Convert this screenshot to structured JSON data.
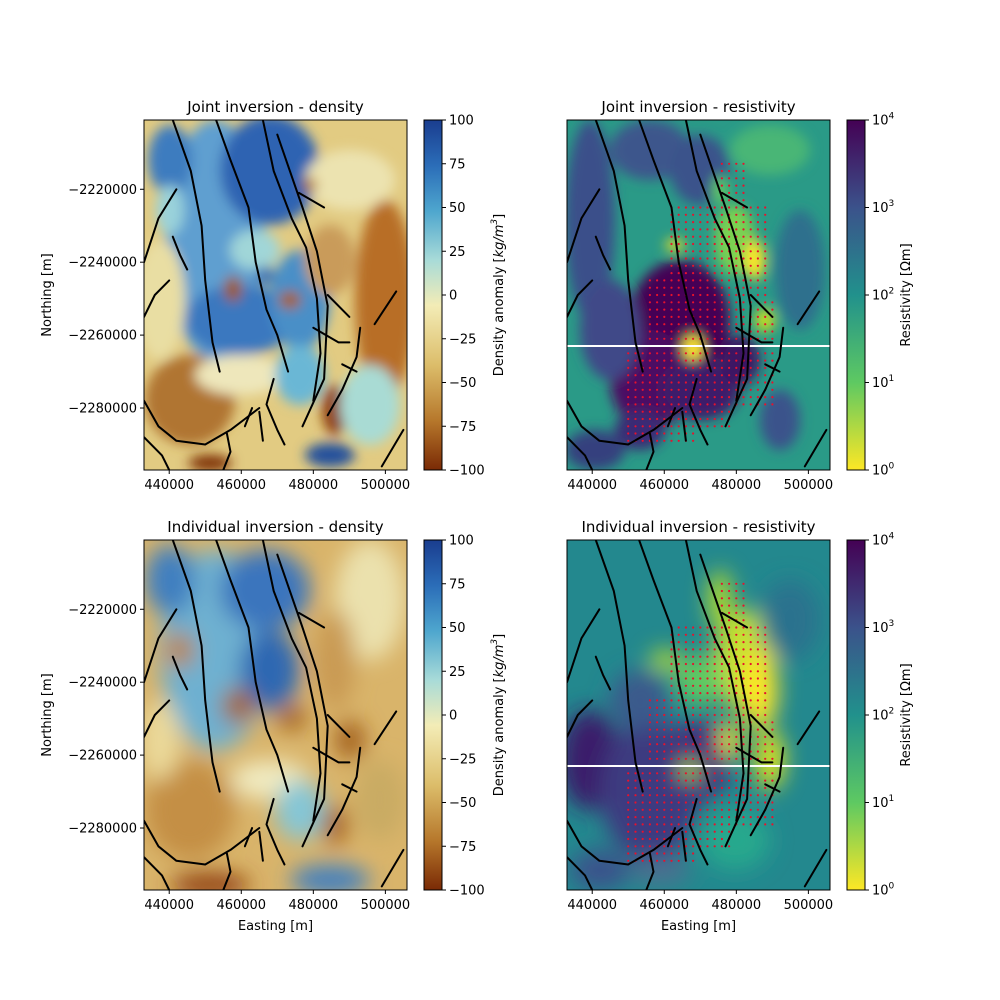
{
  "chart_data": [
    {
      "type": "heatmap",
      "title": "Joint inversion - density",
      "xlabel": "",
      "ylabel": "Northing [m]",
      "xlim": [
        433000,
        506000
      ],
      "ylim": [
        -2297000,
        -2201000
      ],
      "xticks": [
        440000,
        460000,
        480000,
        500000
      ],
      "xtick_labels": [
        "440000",
        "460000",
        "480000",
        "500000"
      ],
      "yticks": [
        -2220000,
        -2240000,
        -2260000,
        -2280000
      ],
      "ytick_labels": [
        "−2220000",
        "−2240000",
        "−2260000",
        "−2280000"
      ],
      "colorbar": {
        "label": "Density anomaly [kg/m3]",
        "label_text": "Density anomaly [",
        "label_unit": "kg/m",
        "label_exp": "3",
        "label_end": "]",
        "scale": "linear",
        "range": [
          -100,
          100
        ],
        "ticks": [
          100,
          75,
          50,
          25,
          0,
          -25,
          -50,
          -75,
          -100
        ],
        "tick_labels": [
          "100",
          "75",
          "50",
          "25",
          "0",
          "−25",
          "−50",
          "−75",
          "−100"
        ],
        "colormap": [
          "#7a2a05",
          "#b6772b",
          "#dcbd6a",
          "#f3ecb6",
          "#a8dbd8",
          "#4ea6ce",
          "#2b6db8",
          "#1a3d8f"
        ]
      }
    },
    {
      "type": "heatmap",
      "title": "Joint inversion - resistivity",
      "xlabel": "",
      "ylabel": "",
      "xlim": [
        433000,
        506000
      ],
      "ylim": [
        -2297000,
        -2201000
      ],
      "xticks": [
        440000,
        460000,
        480000,
        500000
      ],
      "xtick_labels": [
        "440000",
        "460000",
        "480000",
        "500000"
      ],
      "profile_line_northing": -2263000,
      "station_marker_color": "#e8112d",
      "colorbar": {
        "label": "Resistivity [Ωm]",
        "scale": "log",
        "range": [
          1,
          10000
        ],
        "ticks": [
          10000,
          1000,
          100,
          10,
          1
        ],
        "tick_labels": [
          {
            "b": "10",
            "e": "4"
          },
          {
            "b": "10",
            "e": "3"
          },
          {
            "b": "10",
            "e": "2"
          },
          {
            "b": "10",
            "e": "1"
          },
          {
            "b": "10",
            "e": "0"
          }
        ],
        "colormap": [
          "#fde725",
          "#5ec962",
          "#21918c",
          "#3b528b",
          "#440154"
        ]
      }
    },
    {
      "type": "heatmap",
      "title": "Individual inversion - density",
      "xlabel": "Easting [m]",
      "ylabel": "Northing [m]",
      "xlim": [
        433000,
        506000
      ],
      "ylim": [
        -2297000,
        -2201000
      ],
      "xticks": [
        440000,
        460000,
        480000,
        500000
      ],
      "xtick_labels": [
        "440000",
        "460000",
        "480000",
        "500000"
      ],
      "yticks": [
        -2220000,
        -2240000,
        -2260000,
        -2280000
      ],
      "ytick_labels": [
        "−2220000",
        "−2240000",
        "−2260000",
        "−2280000"
      ],
      "colorbar": {
        "label": "Density anomaly [kg/m3]",
        "label_text": "Density anomaly [",
        "label_unit": "kg/m",
        "label_exp": "3",
        "label_end": "]",
        "scale": "linear",
        "range": [
          -100,
          100
        ],
        "ticks": [
          100,
          75,
          50,
          25,
          0,
          -25,
          -50,
          -75,
          -100
        ],
        "tick_labels": [
          "100",
          "75",
          "50",
          "25",
          "0",
          "−25",
          "−50",
          "−75",
          "−100"
        ],
        "colormap": [
          "#7a2a05",
          "#b6772b",
          "#dcbd6a",
          "#f3ecb6",
          "#a8dbd8",
          "#4ea6ce",
          "#2b6db8",
          "#1a3d8f"
        ]
      }
    },
    {
      "type": "heatmap",
      "title": "Individual inversion - resistivity",
      "xlabel": "Easting [m]",
      "ylabel": "",
      "xlim": [
        433000,
        506000
      ],
      "ylim": [
        -2297000,
        -2201000
      ],
      "xticks": [
        440000,
        460000,
        480000,
        500000
      ],
      "xtick_labels": [
        "440000",
        "460000",
        "480000",
        "500000"
      ],
      "profile_line_northing": -2263000,
      "station_marker_color": "#e8112d",
      "colorbar": {
        "label": "Resistivity [Ωm]",
        "scale": "log",
        "range": [
          1,
          10000
        ],
        "ticks": [
          10000,
          1000,
          100,
          10,
          1
        ],
        "tick_labels": [
          {
            "b": "10",
            "e": "4"
          },
          {
            "b": "10",
            "e": "3"
          },
          {
            "b": "10",
            "e": "2"
          },
          {
            "b": "10",
            "e": "1"
          },
          {
            "b": "10",
            "e": "0"
          }
        ],
        "colormap": [
          "#fde725",
          "#5ec962",
          "#21918c",
          "#3b528b",
          "#440154"
        ]
      }
    }
  ],
  "faults": [
    [
      [
        441000,
        -2201000
      ],
      [
        446000,
        -2215000
      ],
      [
        449000,
        -2230000
      ],
      [
        450000,
        -2245000
      ],
      [
        452000,
        -2262000
      ],
      [
        454000,
        -2270000
      ]
    ],
    [
      [
        453000,
        -2201000
      ],
      [
        457000,
        -2212000
      ],
      [
        462000,
        -2225000
      ],
      [
        464000,
        -2240000
      ],
      [
        467000,
        -2253000
      ],
      [
        470000,
        -2260000
      ],
      [
        473000,
        -2270000
      ]
    ],
    [
      [
        466000,
        -2201000
      ],
      [
        469000,
        -2215000
      ],
      [
        474000,
        -2228000
      ],
      [
        478000,
        -2236000
      ],
      [
        481000,
        -2250000
      ],
      [
        482000,
        -2265000
      ],
      [
        480000,
        -2278000
      ]
    ],
    [
      [
        470000,
        -2205000
      ],
      [
        477000,
        -2225000
      ],
      [
        481000,
        -2237000
      ],
      [
        484000,
        -2252000
      ],
      [
        483000,
        -2272000
      ],
      [
        477000,
        -2285000
      ]
    ],
    [
      [
        476000,
        -2221000
      ],
      [
        483000,
        -2225000
      ]
    ],
    [
      [
        480000,
        -2258000
      ],
      [
        487000,
        -2262000
      ],
      [
        490000,
        -2262000
      ]
    ],
    [
      [
        433000,
        -2240000
      ],
      [
        437000,
        -2228000
      ],
      [
        442000,
        -2220000
      ]
    ],
    [
      [
        441000,
        -2233000
      ],
      [
        443000,
        -2238000
      ],
      [
        445000,
        -2242000
      ]
    ],
    [
      [
        433000,
        -2255000
      ],
      [
        436000,
        -2249000
      ],
      [
        440000,
        -2245000
      ]
    ],
    [
      [
        433000,
        -2288000
      ],
      [
        438000,
        -2293000
      ],
      [
        440000,
        -2297000
      ]
    ],
    [
      [
        433000,
        -2278000
      ],
      [
        437000,
        -2285000
      ],
      [
        442000,
        -2289000
      ],
      [
        450000,
        -2290000
      ],
      [
        457000,
        -2286000
      ],
      [
        461000,
        -2283000
      ],
      [
        465000,
        -2280000
      ]
    ],
    [
      [
        455000,
        -2297000
      ],
      [
        457000,
        -2292000
      ],
      [
        456000,
        -2287000
      ]
    ],
    [
      [
        469000,
        -2272000
      ],
      [
        467000,
        -2279000
      ],
      [
        470000,
        -2286000
      ],
      [
        472000,
        -2290000
      ]
    ],
    [
      [
        461000,
        -2285000
      ],
      [
        463000,
        -2280000
      ]
    ],
    [
      [
        465000,
        -2281000
      ],
      [
        466000,
        -2289000
      ]
    ],
    [
      [
        493000,
        -2258000
      ],
      [
        492000,
        -2266000
      ],
      [
        488000,
        -2275000
      ],
      [
        484000,
        -2282000
      ]
    ],
    [
      [
        488000,
        -2268000
      ],
      [
        492000,
        -2270000
      ]
    ],
    [
      [
        503000,
        -2248000
      ],
      [
        497000,
        -2257000
      ]
    ],
    [
      [
        505000,
        -2286000
      ],
      [
        499000,
        -2296000
      ]
    ],
    [
      [
        484000,
        -2249000
      ],
      [
        490000,
        -2255000
      ]
    ]
  ]
}
